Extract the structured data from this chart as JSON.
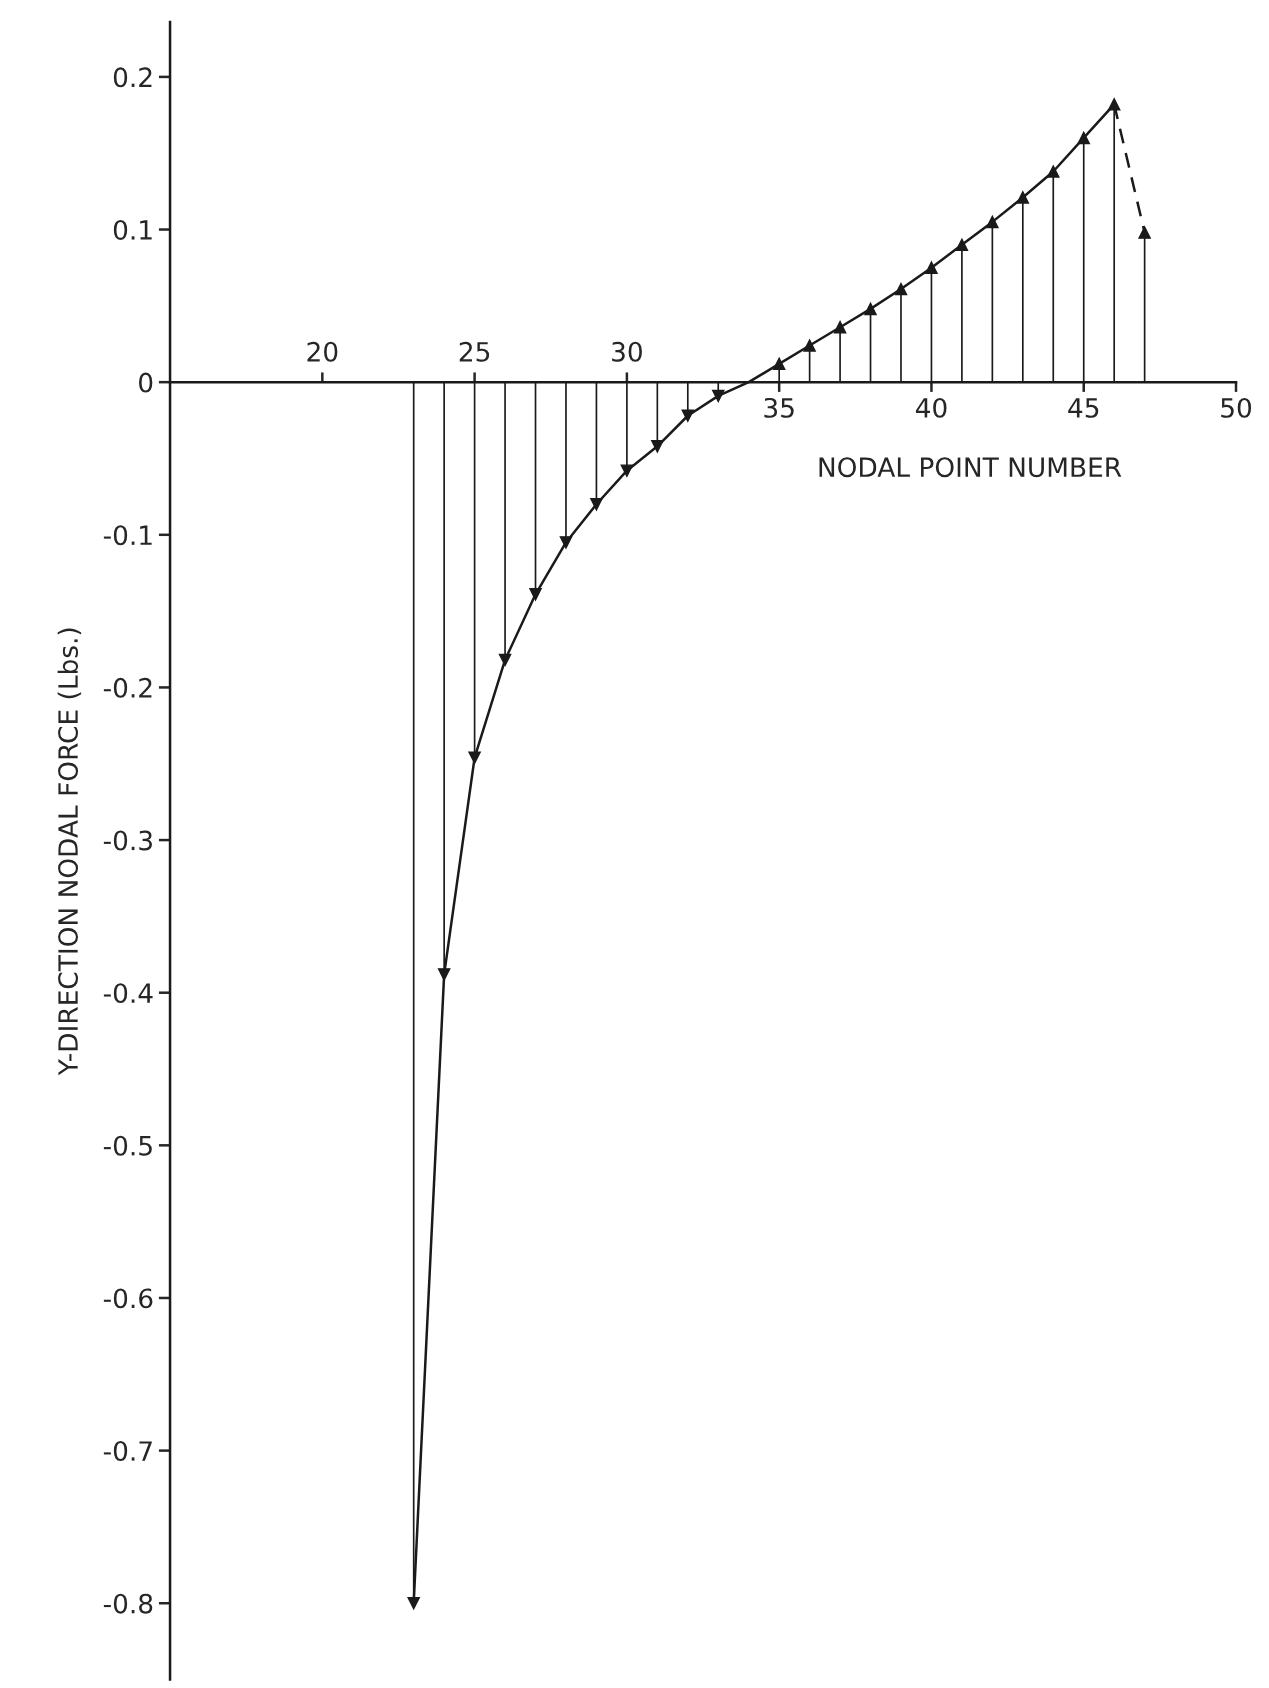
{
  "chart_data": {
    "type": "lollipop",
    "xlabel": "NODAL POINT NUMBER",
    "ylabel": "Y-DIRECTION NODAL FORCE (Lbs.)",
    "xlim": [
      15,
      50
    ],
    "xticks": [
      35,
      40,
      45,
      50
    ],
    "x2lim": [
      15,
      50
    ],
    "x2ticks": [
      20,
      25,
      30
    ],
    "ylim": [
      -0.85,
      0.236
    ],
    "yticks": [
      0.2,
      0.1,
      0,
      -0.1,
      -0.2,
      -0.3,
      -0.4,
      -0.5,
      -0.6,
      -0.7,
      -0.8
    ],
    "grid": false,
    "legend": false,
    "series": [
      {
        "color": "#1a1a1a",
        "marker": "triangle",
        "x": [
          23,
          24,
          25,
          26,
          27,
          28,
          29,
          30,
          31,
          32,
          33,
          35,
          36,
          37,
          38,
          39,
          40,
          41,
          42,
          43,
          44,
          45,
          46,
          47
        ],
        "values": [
          -0.8,
          -0.388,
          -0.246,
          -0.182,
          -0.139,
          -0.105,
          -0.08,
          -0.058,
          -0.042,
          -0.022,
          -0.009,
          0.012,
          0.024,
          0.036,
          0.048,
          0.061,
          0.075,
          0.09,
          0.105,
          0.121,
          0.138,
          0.16,
          0.182,
          0.098
        ]
      },
      {
        "type": "line",
        "color": "#1a1a1a",
        "line_style": "solid",
        "x": [
          23,
          24,
          25,
          26,
          27,
          28,
          29,
          30,
          31,
          32,
          33,
          34,
          35,
          36,
          37,
          38,
          39,
          40,
          41,
          42,
          43,
          44,
          45,
          46
        ],
        "values": [
          -0.8,
          -0.388,
          -0.246,
          -0.182,
          -0.139,
          -0.105,
          -0.08,
          -0.058,
          -0.042,
          -0.022,
          -0.009,
          0,
          0.012,
          0.024,
          0.036,
          0.048,
          0.061,
          0.075,
          0.09,
          0.105,
          0.121,
          0.138,
          0.16,
          0.182
        ]
      },
      {
        "type": "line",
        "color": "#1a1a1a",
        "line_style": "dashed",
        "x": [
          46,
          47
        ],
        "values": [
          0.182,
          0.098
        ]
      }
    ]
  }
}
